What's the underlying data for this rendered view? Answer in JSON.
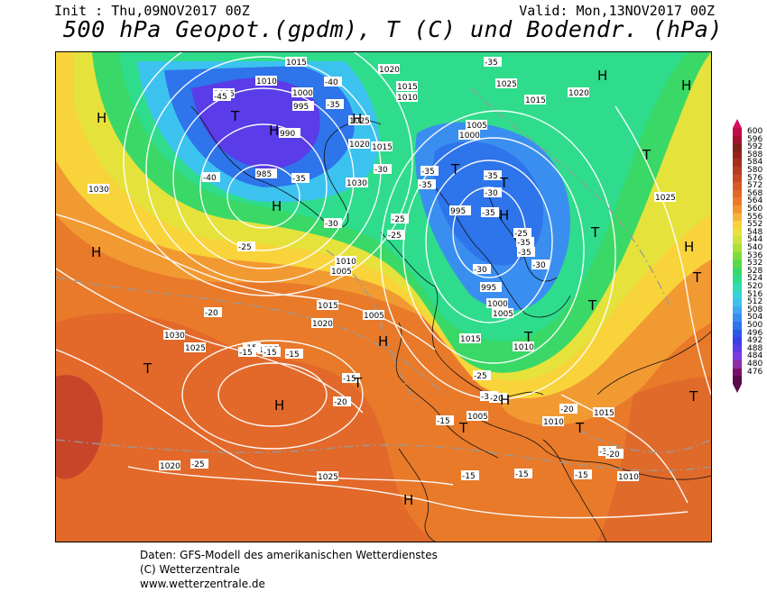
{
  "header": {
    "init": "Init : Thu,09NOV2017 00Z",
    "valid": "Valid: Mon,13NOV2017 00Z",
    "title": "500 hPa Geopot.(gpdm), T (C) und Bodendr. (hPa)"
  },
  "colors": {
    "legend_scale": [
      "#5a0a4a",
      "#7a0f6a",
      "#8e2ca8",
      "#7a3ae0",
      "#5a3ce8",
      "#3a40e8",
      "#2a58e8",
      "#2e74ea",
      "#3a8ef0",
      "#41a8f2",
      "#3cc2ee",
      "#36d4d8",
      "#30dcb4",
      "#2edc8c",
      "#3ad866",
      "#5ad84a",
      "#80dc3a",
      "#a8e03a",
      "#cce23c",
      "#eae23c",
      "#f8d23c",
      "#f6b43a",
      "#f29432",
      "#ec7a2c",
      "#e26a28",
      "#d65a26",
      "#c84a24",
      "#b83c22",
      "#a6301e",
      "#94241c",
      "#84201a",
      "#a81030",
      "#c00c48",
      "#d80c60"
    ]
  },
  "legend": {
    "labels": [
      "600",
      "596",
      "592",
      "588",
      "584",
      "580",
      "576",
      "572",
      "568",
      "564",
      "560",
      "556",
      "552",
      "548",
      "544",
      "540",
      "536",
      "532",
      "528",
      "524",
      "520",
      "516",
      "512",
      "508",
      "504",
      "500",
      "496",
      "492",
      "488",
      "484",
      "480",
      "476"
    ]
  },
  "map": {
    "pressure_labels": [
      "1015",
      "1020",
      "1010",
      "1005",
      "1000",
      "995",
      "990",
      "985",
      "1015",
      "1010",
      "1025",
      "1015",
      "1020",
      "1005",
      "1000",
      "1030",
      "995",
      "1025",
      "1020",
      "1025",
      "1030",
      "1030",
      "1015",
      "1010",
      "1005",
      "1020",
      "1025",
      "1015",
      "1005",
      "1005",
      "1000",
      "995",
      "1015",
      "1010",
      "1005",
      "1010",
      "1015",
      "1010",
      "1020",
      "1025",
      "1030",
      "1025"
    ],
    "temp_labels": [
      "-35",
      "-45",
      "-40",
      "-35",
      "-40",
      "-35",
      "-30",
      "-35",
      "-35",
      "-30",
      "-25",
      "-35",
      "-30",
      "-35",
      "-25",
      "-30",
      "-35",
      "-25",
      "-35",
      "-30",
      "-25",
      "-20",
      "-15",
      "-15",
      "-15",
      "-15",
      "-20",
      "-15",
      "-15",
      "-15",
      "-25",
      "-30",
      "-20",
      "-20",
      "-15",
      "-25",
      "-30",
      "-20",
      "-15"
    ],
    "high_low": [
      "T",
      "H",
      "H",
      "H",
      "T",
      "H",
      "H",
      "T",
      "T",
      "H",
      "T",
      "T",
      "H",
      "H",
      "T",
      "H",
      "T",
      "T",
      "H",
      "T",
      "T",
      "H",
      "H",
      "T",
      "H",
      "T"
    ]
  },
  "footer": {
    "line1": "Daten: GFS-Modell des amerikanischen Wetterdienstes",
    "line2": "(C) Wetterzentrale",
    "line3": "www.wetterzentrale.de"
  }
}
